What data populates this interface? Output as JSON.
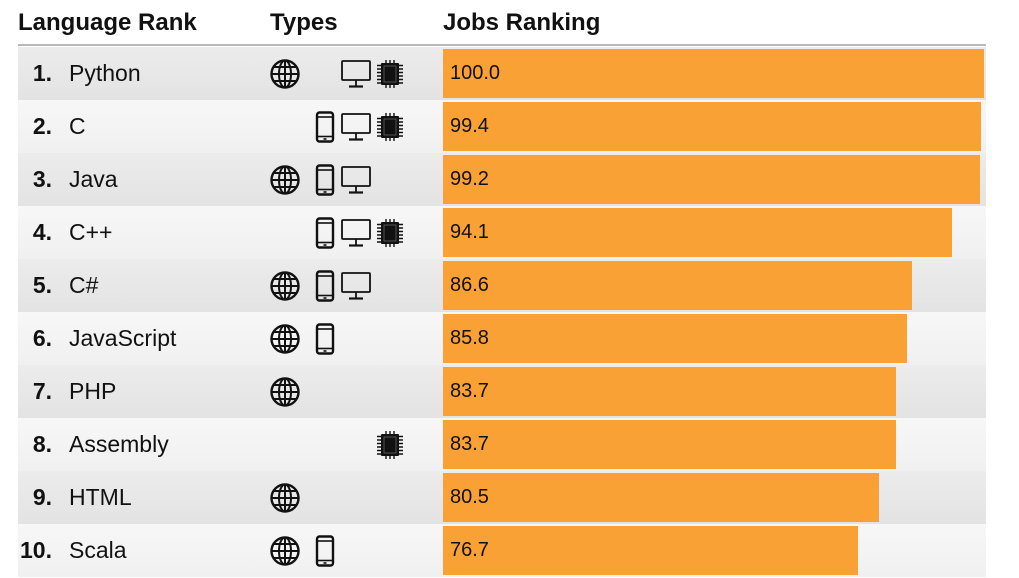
{
  "headers": {
    "language_rank": "Language Rank",
    "types": "Types",
    "jobs_ranking": "Jobs Ranking"
  },
  "colors": {
    "bar": "#f9a134",
    "icon": "#111111"
  },
  "chart_data": {
    "type": "bar",
    "title": "",
    "xlabel": "Jobs Ranking",
    "ylabel": "",
    "xlim": [
      0,
      100
    ],
    "categories": [
      "Python",
      "C",
      "Java",
      "C++",
      "C#",
      "JavaScript",
      "PHP",
      "Assembly",
      "HTML",
      "Scala"
    ],
    "values": [
      100.0,
      99.4,
      99.2,
      94.1,
      86.6,
      85.8,
      83.7,
      83.7,
      80.5,
      76.7
    ],
    "rows": [
      {
        "rank": "1.",
        "language": "Python",
        "value_label": "100.0",
        "value": 100.0,
        "types": [
          "web",
          "desktop",
          "embedded"
        ]
      },
      {
        "rank": "2.",
        "language": "C",
        "value_label": "99.4",
        "value": 99.4,
        "types": [
          "mobile",
          "desktop",
          "embedded"
        ]
      },
      {
        "rank": "3.",
        "language": "Java",
        "value_label": "99.2",
        "value": 99.2,
        "types": [
          "web",
          "mobile",
          "desktop"
        ]
      },
      {
        "rank": "4.",
        "language": "C++",
        "value_label": "94.1",
        "value": 94.1,
        "types": [
          "mobile",
          "desktop",
          "embedded"
        ]
      },
      {
        "rank": "5.",
        "language": "C#",
        "value_label": "86.6",
        "value": 86.6,
        "types": [
          "web",
          "mobile",
          "desktop"
        ]
      },
      {
        "rank": "6.",
        "language": "JavaScript",
        "value_label": "85.8",
        "value": 85.8,
        "types": [
          "web",
          "mobile"
        ]
      },
      {
        "rank": "7.",
        "language": "PHP",
        "value_label": "83.7",
        "value": 83.7,
        "types": [
          "web"
        ]
      },
      {
        "rank": "8.",
        "language": "Assembly",
        "value_label": "83.7",
        "value": 83.7,
        "types": [
          "embedded"
        ]
      },
      {
        "rank": "9.",
        "language": "HTML",
        "value_label": "80.5",
        "value": 80.5,
        "types": [
          "web"
        ]
      },
      {
        "rank": "10.",
        "language": "Scala",
        "value_label": "76.7",
        "value": 76.7,
        "types": [
          "web",
          "mobile"
        ]
      }
    ]
  }
}
